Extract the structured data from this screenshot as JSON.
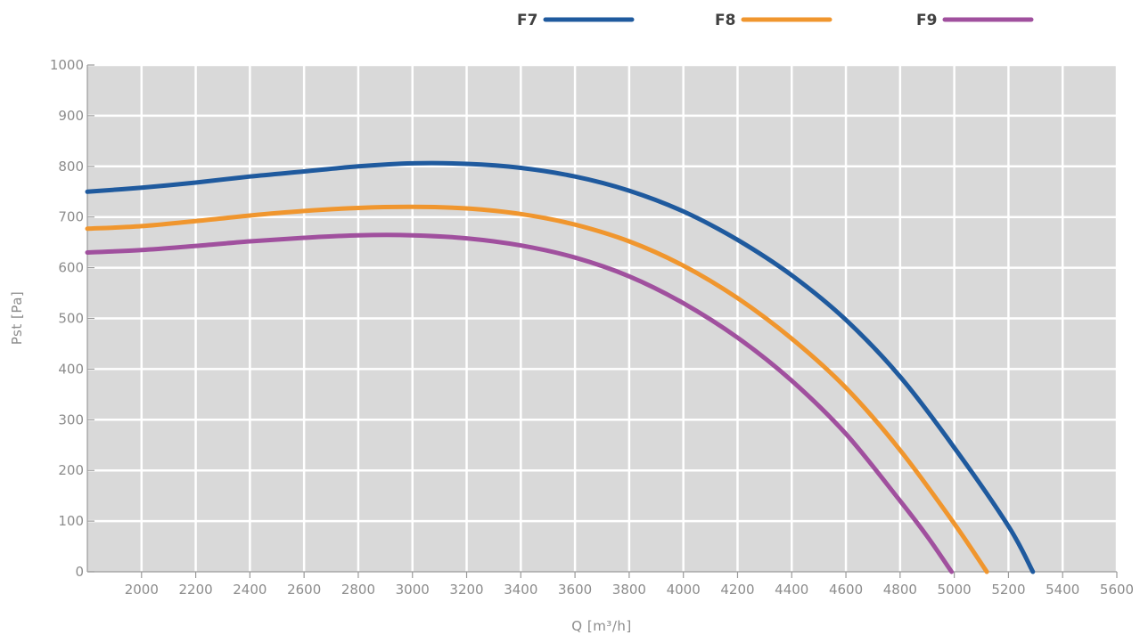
{
  "chart_data": {
    "type": "line",
    "xlabel": "Q [m³/h]",
    "ylabel": "Pst [Pa]",
    "xlim": [
      1800,
      5600
    ],
    "ylim": [
      0,
      1000
    ],
    "x_ticks": [
      2000,
      2200,
      2400,
      2600,
      2800,
      3000,
      3200,
      3400,
      3600,
      3800,
      4000,
      4200,
      4400,
      4600,
      4800,
      5000,
      5200,
      5400,
      5600
    ],
    "y_ticks": [
      0,
      100,
      200,
      300,
      400,
      500,
      600,
      700,
      800,
      900,
      1000
    ],
    "grid": true,
    "legend_position": "top",
    "background": "#d9d9d9",
    "series": [
      {
        "name": "F7",
        "color": "#1f5a9e",
        "points": [
          [
            1800,
            750
          ],
          [
            2000,
            758
          ],
          [
            2200,
            768
          ],
          [
            2400,
            780
          ],
          [
            2600,
            790
          ],
          [
            2800,
            800
          ],
          [
            3000,
            806
          ],
          [
            3200,
            805
          ],
          [
            3400,
            797
          ],
          [
            3600,
            780
          ],
          [
            3800,
            752
          ],
          [
            4000,
            711
          ],
          [
            4200,
            655
          ],
          [
            4400,
            585
          ],
          [
            4600,
            497
          ],
          [
            4800,
            385
          ],
          [
            5000,
            245
          ],
          [
            5200,
            90
          ],
          [
            5290,
            0
          ]
        ]
      },
      {
        "name": "F8",
        "color": "#f0962e",
        "points": [
          [
            1800,
            677
          ],
          [
            2000,
            682
          ],
          [
            2200,
            692
          ],
          [
            2400,
            703
          ],
          [
            2600,
            712
          ],
          [
            2800,
            718
          ],
          [
            3000,
            720
          ],
          [
            3200,
            717
          ],
          [
            3400,
            706
          ],
          [
            3600,
            685
          ],
          [
            3800,
            652
          ],
          [
            4000,
            604
          ],
          [
            4200,
            540
          ],
          [
            4400,
            460
          ],
          [
            4600,
            363
          ],
          [
            4800,
            240
          ],
          [
            5000,
            95
          ],
          [
            5120,
            0
          ]
        ]
      },
      {
        "name": "F9",
        "color": "#a0509e",
        "points": [
          [
            1800,
            630
          ],
          [
            2000,
            635
          ],
          [
            2200,
            643
          ],
          [
            2400,
            652
          ],
          [
            2600,
            659
          ],
          [
            2800,
            664
          ],
          [
            3000,
            664
          ],
          [
            3200,
            658
          ],
          [
            3400,
            644
          ],
          [
            3600,
            620
          ],
          [
            3800,
            583
          ],
          [
            4000,
            530
          ],
          [
            4200,
            462
          ],
          [
            4400,
            377
          ],
          [
            4600,
            272
          ],
          [
            4800,
            140
          ],
          [
            4900,
            70
          ],
          [
            4990,
            0
          ]
        ]
      }
    ]
  }
}
